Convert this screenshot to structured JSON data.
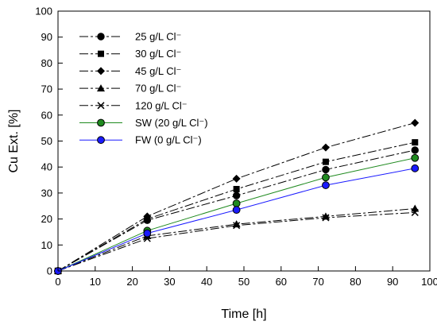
{
  "chart_data": {
    "type": "line",
    "xlabel": "Time [h]",
    "ylabel": "Cu Ext. [%]",
    "xlim": [
      0,
      100
    ],
    "ylim": [
      0,
      100
    ],
    "xticks": [
      0,
      10,
      20,
      30,
      40,
      50,
      60,
      70,
      80,
      90,
      100
    ],
    "yticks": [
      0,
      10,
      20,
      30,
      40,
      50,
      60,
      70,
      80,
      90,
      100
    ],
    "grid": false,
    "legend_position": "top-left",
    "series": [
      {
        "name": "25 g/L Cl⁻",
        "marker": "circle",
        "color": "#000000",
        "line": "dashdot",
        "x": [
          0,
          24,
          48,
          72,
          96
        ],
        "y": [
          0,
          19.5,
          29,
          39,
          46.5
        ]
      },
      {
        "name": "30 g/L Cl⁻",
        "marker": "square",
        "color": "#000000",
        "line": "dashdot",
        "x": [
          0,
          24,
          48,
          72,
          96
        ],
        "y": [
          0,
          20,
          31.5,
          42,
          49.5
        ]
      },
      {
        "name": "45 g/L Cl⁻",
        "marker": "diamond",
        "color": "#000000",
        "line": "dashdot",
        "x": [
          0,
          24,
          48,
          72,
          96
        ],
        "y": [
          0,
          21,
          35.5,
          47.5,
          57
        ]
      },
      {
        "name": "70 g/L Cl⁻",
        "marker": "triangle",
        "color": "#000000",
        "line": "dashdot",
        "x": [
          0,
          24,
          48,
          72,
          96
        ],
        "y": [
          0,
          13.5,
          18,
          21,
          24
        ]
      },
      {
        "name": "120 g/L Cl⁻",
        "marker": "cross",
        "color": "#000000",
        "line": "dashdot",
        "x": [
          0,
          24,
          48,
          72,
          96
        ],
        "y": [
          0,
          12.5,
          17.5,
          20.5,
          22.5
        ]
      },
      {
        "name": "SW (20 g/L Cl⁻)",
        "marker": "circle-filled",
        "color": "#1f8a1f",
        "fill": "#1f8a1f",
        "line": "solid",
        "x": [
          0,
          24,
          48,
          72,
          96
        ],
        "y": [
          0,
          15.5,
          26,
          36,
          43.5
        ]
      },
      {
        "name": "FW (0 g/L Cl⁻)",
        "marker": "circle-filled",
        "color": "#1a1aff",
        "fill": "#1a1aff",
        "line": "solid",
        "x": [
          0,
          24,
          48,
          72,
          96
        ],
        "y": [
          0,
          14.5,
          23.5,
          33,
          39.5
        ]
      }
    ]
  }
}
